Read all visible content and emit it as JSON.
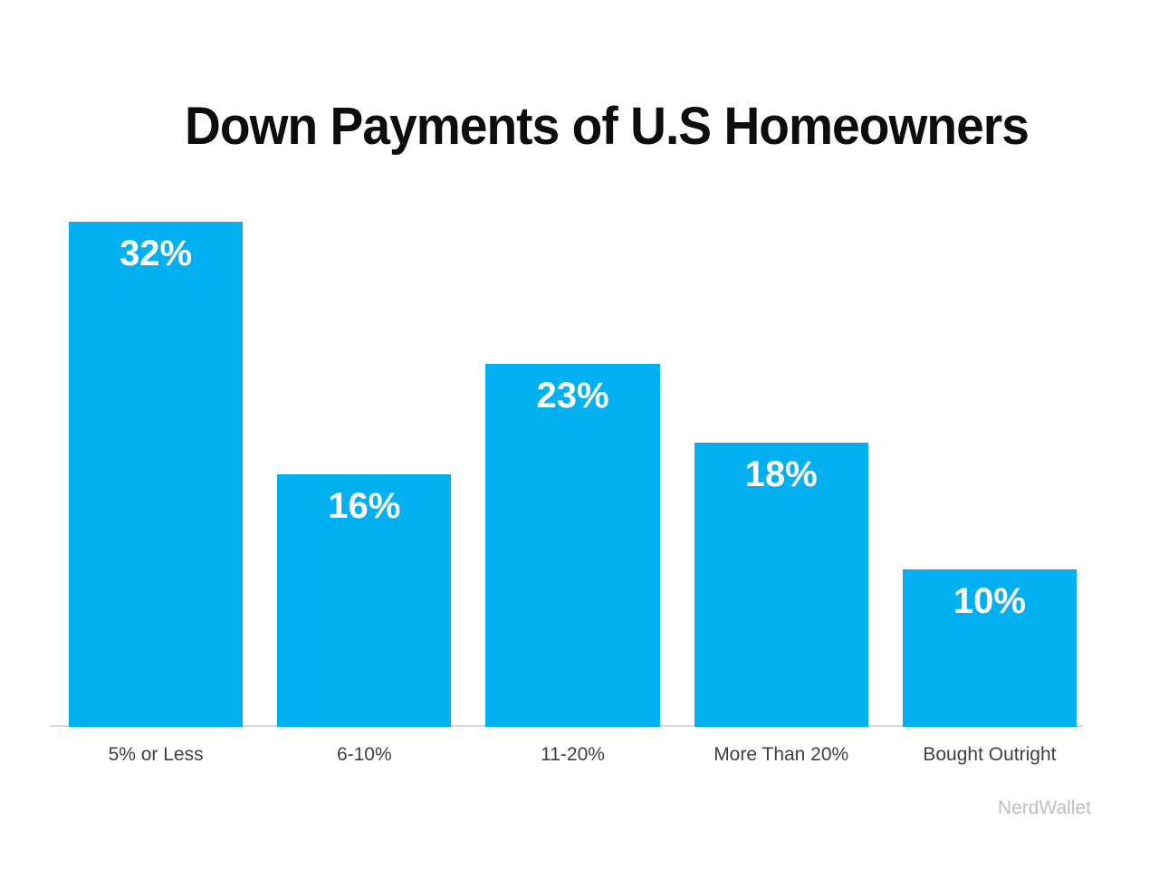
{
  "chart_data": {
    "type": "bar",
    "title": "Down Payments of U.S Homeowners",
    "categories": [
      "5% or Less",
      "6-10%",
      "11-20%",
      "More Than 20%",
      "Bought Outright"
    ],
    "values": [
      32,
      16,
      23,
      18,
      10
    ],
    "value_labels": [
      "32%",
      "16%",
      "23%",
      "18%",
      "10%"
    ],
    "xlabel": "",
    "ylabel": "",
    "ylim": [
      0,
      32
    ],
    "grid": "off",
    "legend": "none",
    "bar_color": "#00b0f0",
    "value_label_color": "#ffffff",
    "category_label_color": "#404040",
    "axis_line_color": "#d9d9d9",
    "title_color": "#0d0d0d",
    "background_color": "#ffffff"
  },
  "footer": {
    "attribution": "NerdWallet",
    "attribution_color": "#bfbfbf"
  }
}
